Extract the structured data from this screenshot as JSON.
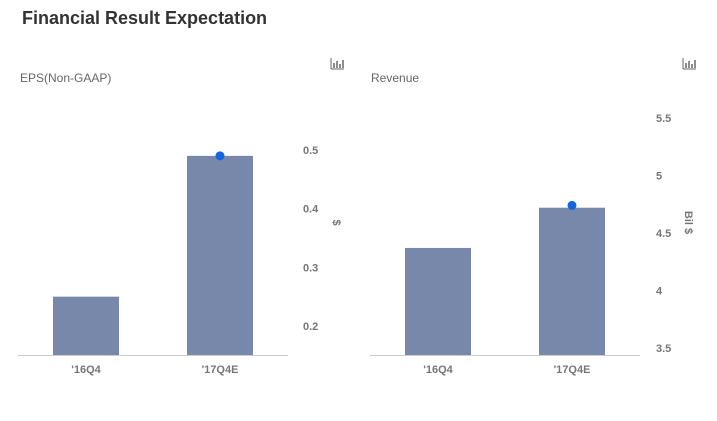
{
  "title": "Financial Result Expectation",
  "chart_data": [
    {
      "type": "bar",
      "title": "EPS(Non-GAAP)",
      "categories": [
        "'16Q4",
        "'17Q4E"
      ],
      "values": [
        0.25,
        0.49
      ],
      "marker_values": [
        null,
        0.49
      ],
      "ylabel": "$",
      "yticks": [
        "0.2",
        "0.3",
        "0.4",
        "0.5"
      ],
      "ylim": [
        0.15,
        0.5
      ],
      "grid": false,
      "bar_color": "#7788aa",
      "marker_color": "#1366dd",
      "menu_icon": "bar-chart-icon"
    },
    {
      "type": "bar",
      "title": "Revenue",
      "categories": [
        "'16Q4",
        "'17Q4E"
      ],
      "values": [
        4.37,
        4.72
      ],
      "marker_values": [
        null,
        4.74
      ],
      "ylabel": "Bil $",
      "yticks": [
        "3.5",
        "4",
        "4.5",
        "5",
        "5.5"
      ],
      "ylim": [
        3.45,
        5.5
      ],
      "grid": false,
      "bar_color": "#7788aa",
      "marker_color": "#1366dd",
      "menu_icon": "bar-chart-icon"
    }
  ]
}
